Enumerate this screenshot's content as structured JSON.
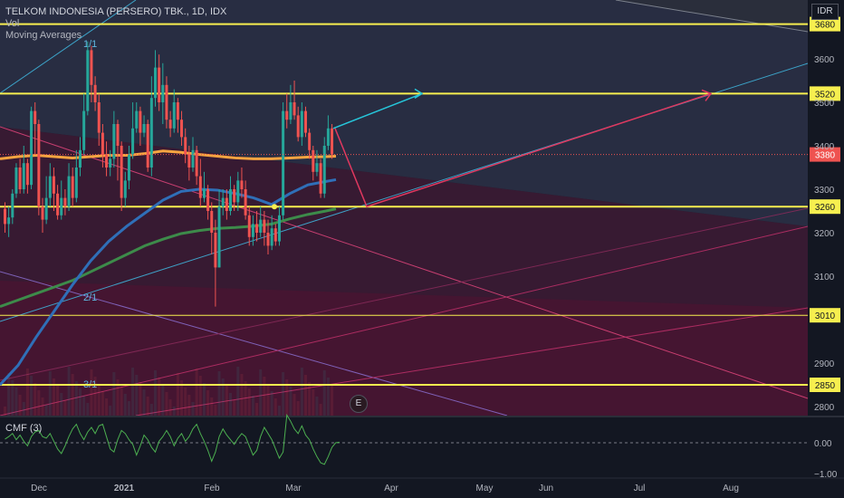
{
  "header": {
    "title": "TELKOM INDONESIA (PERSERO) TBK., 1D, IDX",
    "indicators": [
      "Vol",
      "Moving Averages"
    ],
    "currency": "IDR"
  },
  "chart_data": {
    "type": "candlestick",
    "price_axis": {
      "ticks": [
        3600,
        3500,
        3400,
        3300,
        3200,
        3100,
        2900,
        2800
      ],
      "range": [
        2780,
        3700
      ]
    },
    "time_axis": [
      "Dec",
      "2021",
      "Feb",
      "Mar",
      "Apr",
      "May",
      "Jun",
      "Jul",
      "Aug"
    ],
    "horizontal_levels": [
      {
        "label": "3680",
        "value": 3680,
        "color": "#f7ef4f"
      },
      {
        "label": "3520",
        "value": 3520,
        "color": "#f7ef4f"
      },
      {
        "label": "3260",
        "value": 3260,
        "color": "#f7ef4f"
      },
      {
        "label": "3010",
        "value": 3010,
        "color": "#f7ef4f"
      },
      {
        "label": "2850",
        "value": 2850,
        "color": "#f7ef4f"
      }
    ],
    "last_price": {
      "label": "3380",
      "value": 3380,
      "color": "#ef5350"
    },
    "fan_labels": [
      "1/1",
      "2/1",
      "3/1"
    ],
    "cmf": {
      "label": "CMF (3)",
      "ticks": [
        "0.00",
        "−1.00"
      ]
    },
    "event_marker": "E",
    "candles": [
      [
        3255,
        3220,
        3270,
        3200
      ],
      [
        3220,
        3235,
        3260,
        3190
      ],
      [
        3235,
        3290,
        3300,
        3220
      ],
      [
        3290,
        3350,
        3360,
        3280
      ],
      [
        3350,
        3300,
        3370,
        3290
      ],
      [
        3300,
        3360,
        3400,
        3290
      ],
      [
        3360,
        3310,
        3370,
        3290
      ],
      [
        3310,
        3480,
        3490,
        3300
      ],
      [
        3480,
        3450,
        3500,
        3380
      ],
      [
        3450,
        3260,
        3460,
        3240
      ],
      [
        3260,
        3230,
        3280,
        3200
      ],
      [
        3230,
        3280,
        3330,
        3220
      ],
      [
        3280,
        3330,
        3360,
        3260
      ],
      [
        3330,
        3290,
        3350,
        3250
      ],
      [
        3290,
        3240,
        3310,
        3230
      ],
      [
        3240,
        3280,
        3320,
        3230
      ],
      [
        3280,
        3260,
        3300,
        3240
      ],
      [
        3260,
        3330,
        3360,
        3250
      ],
      [
        3330,
        3280,
        3350,
        3260
      ],
      [
        3280,
        3350,
        3390,
        3270
      ],
      [
        3350,
        3390,
        3420,
        3330
      ],
      [
        3390,
        3480,
        3520,
        3380
      ],
      [
        3480,
        3620,
        3640,
        3470
      ],
      [
        3620,
        3540,
        3630,
        3500
      ],
      [
        3540,
        3500,
        3560,
        3480
      ],
      [
        3500,
        3430,
        3520,
        3400
      ],
      [
        3430,
        3380,
        3450,
        3350
      ],
      [
        3380,
        3350,
        3410,
        3330
      ],
      [
        3350,
        3370,
        3390,
        3330
      ],
      [
        3370,
        3450,
        3480,
        3350
      ],
      [
        3450,
        3400,
        3460,
        3320
      ],
      [
        3400,
        3280,
        3410,
        3250
      ],
      [
        3280,
        3320,
        3340,
        3260
      ],
      [
        3320,
        3380,
        3400,
        3300
      ],
      [
        3380,
        3440,
        3500,
        3370
      ],
      [
        3440,
        3480,
        3500,
        3430
      ],
      [
        3480,
        3430,
        3490,
        3400
      ],
      [
        3430,
        3450,
        3470,
        3420
      ],
      [
        3450,
        3350,
        3460,
        3340
      ],
      [
        3350,
        3510,
        3560,
        3330
      ],
      [
        3510,
        3580,
        3620,
        3490
      ],
      [
        3580,
        3500,
        3610,
        3480
      ],
      [
        3500,
        3540,
        3590,
        3450
      ],
      [
        3540,
        3460,
        3560,
        3440
      ],
      [
        3460,
        3440,
        3480,
        3420
      ],
      [
        3440,
        3500,
        3530,
        3430
      ],
      [
        3500,
        3460,
        3510,
        3430
      ],
      [
        3460,
        3420,
        3480,
        3400
      ],
      [
        3420,
        3380,
        3440,
        3360
      ],
      [
        3380,
        3350,
        3400,
        3320
      ],
      [
        3350,
        3390,
        3420,
        3340
      ],
      [
        3390,
        3330,
        3400,
        3310
      ],
      [
        3330,
        3280,
        3370,
        3260
      ],
      [
        3280,
        3300,
        3340,
        3270
      ],
      [
        3300,
        3250,
        3310,
        3230
      ],
      [
        3250,
        3200,
        3270,
        3150
      ],
      [
        3200,
        3120,
        3230,
        3030
      ],
      [
        3120,
        3260,
        3300,
        3120
      ],
      [
        3260,
        3280,
        3300,
        3240
      ],
      [
        3280,
        3250,
        3300,
        3230
      ],
      [
        3250,
        3300,
        3330,
        3240
      ],
      [
        3300,
        3270,
        3310,
        3250
      ],
      [
        3270,
        3320,
        3340,
        3250
      ],
      [
        3320,
        3300,
        3350,
        3280
      ],
      [
        3300,
        3240,
        3320,
        3230
      ],
      [
        3240,
        3190,
        3260,
        3170
      ],
      [
        3190,
        3220,
        3240,
        3170
      ],
      [
        3220,
        3200,
        3250,
        3180
      ],
      [
        3200,
        3230,
        3260,
        3190
      ],
      [
        3230,
        3200,
        3250,
        3170
      ],
      [
        3200,
        3170,
        3230,
        3150
      ],
      [
        3170,
        3210,
        3240,
        3160
      ],
      [
        3210,
        3180,
        3220,
        3170
      ],
      [
        3180,
        3240,
        3260,
        3170
      ],
      [
        3240,
        3480,
        3500,
        3230
      ],
      [
        3480,
        3460,
        3520,
        3440
      ],
      [
        3460,
        3500,
        3540,
        3450
      ],
      [
        3500,
        3470,
        3550,
        3460
      ],
      [
        3470,
        3420,
        3490,
        3410
      ],
      [
        3420,
        3480,
        3500,
        3400
      ],
      [
        3480,
        3430,
        3490,
        3420
      ],
      [
        3430,
        3390,
        3440,
        3370
      ],
      [
        3390,
        3340,
        3400,
        3320
      ],
      [
        3340,
        3360,
        3390,
        3330
      ],
      [
        3360,
        3290,
        3370,
        3280
      ],
      [
        3290,
        3400,
        3420,
        3280
      ],
      [
        3400,
        3440,
        3470,
        3390
      ],
      [
        3440,
        3380,
        3450,
        3370
      ]
    ],
    "ma_fast": [
      [
        0,
        3370
      ],
      [
        20,
        3375
      ],
      [
        40,
        3378
      ],
      [
        60,
        3375
      ],
      [
        80,
        3372
      ],
      [
        100,
        3375
      ],
      [
        120,
        3378
      ],
      [
        140,
        3378
      ],
      [
        160,
        3382
      ],
      [
        180,
        3388
      ],
      [
        200,
        3385
      ],
      [
        220,
        3380
      ],
      [
        240,
        3376
      ],
      [
        260,
        3372
      ],
      [
        280,
        3370
      ],
      [
        300,
        3370
      ],
      [
        320,
        3372
      ],
      [
        340,
        3374
      ],
      [
        360,
        3375
      ],
      [
        371,
        3376
      ]
    ],
    "ma_mid": [
      [
        0,
        2850
      ],
      [
        20,
        2895
      ],
      [
        40,
        2960
      ],
      [
        60,
        3020
      ],
      [
        80,
        3080
      ],
      [
        100,
        3135
      ],
      [
        120,
        3180
      ],
      [
        140,
        3215
      ],
      [
        160,
        3245
      ],
      [
        180,
        3275
      ],
      [
        200,
        3295
      ],
      [
        220,
        3300
      ],
      [
        240,
        3298
      ],
      [
        260,
        3290
      ],
      [
        280,
        3280
      ],
      [
        300,
        3265
      ],
      [
        320,
        3290
      ],
      [
        340,
        3310
      ],
      [
        360,
        3318
      ],
      [
        371,
        3322
      ]
    ],
    "ma_slow": [
      [
        0,
        3030
      ],
      [
        20,
        3045
      ],
      [
        40,
        3060
      ],
      [
        60,
        3075
      ],
      [
        80,
        3090
      ],
      [
        100,
        3110
      ],
      [
        120,
        3130
      ],
      [
        140,
        3150
      ],
      [
        160,
        3170
      ],
      [
        180,
        3185
      ],
      [
        200,
        3198
      ],
      [
        220,
        3205
      ],
      [
        240,
        3210
      ],
      [
        260,
        3212
      ],
      [
        280,
        3215
      ],
      [
        300,
        3220
      ],
      [
        320,
        3232
      ],
      [
        340,
        3242
      ],
      [
        360,
        3250
      ],
      [
        371,
        3255
      ]
    ],
    "cmf_series": [
      0.12,
      0.2,
      0.3,
      0.1,
      0.25,
      0.05,
      -0.1,
      0.2,
      0.35,
      0.4,
      0.2,
      0.15,
      0.3,
      0.05,
      -0.2,
      -0.35,
      -0.1,
      0.2,
      0.45,
      0.6,
      0.3,
      0.1,
      0.35,
      0.5,
      0.3,
      0.55,
      0.6,
      0.2,
      -0.2,
      -0.3,
      0.1,
      0.4,
      0.3,
      0.1,
      -0.05,
      -0.4,
      -0.1,
      0.25,
      0.1,
      -0.15,
      -0.3,
      0.05,
      0.2,
      0.4,
      0.2,
      -0.1,
      0.15,
      0.3,
      0.05,
      0.2,
      0.45,
      0.6,
      0.3,
      0.05,
      -0.25,
      -0.6,
      -0.3,
      0.2,
      0.45,
      0.25,
      0.1,
      -0.05,
      0.15,
      0.3,
      0.2,
      -0.1,
      -0.4,
      -0.25,
      0.2,
      0.5,
      0.3,
      0.1,
      -0.2,
      -0.5,
      -0.3,
      0.9,
      0.7,
      0.45,
      0.3,
      0.55,
      0.25,
      0.1,
      -0.2,
      -0.45,
      -0.65,
      -0.7,
      -0.45,
      -0.15,
      0.0,
      0.02
    ]
  }
}
